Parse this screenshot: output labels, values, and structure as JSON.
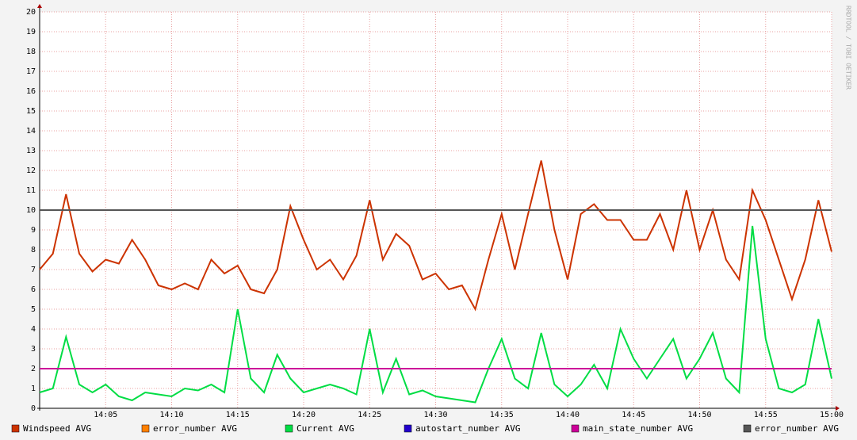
{
  "chart_data": {
    "type": "line",
    "watermark": "RRDTOOL / TOBI OETIKER",
    "x": [
      "14:00",
      "14:01",
      "14:02",
      "14:03",
      "14:04",
      "14:05",
      "14:06",
      "14:07",
      "14:08",
      "14:09",
      "14:10",
      "14:11",
      "14:12",
      "14:13",
      "14:14",
      "14:15",
      "14:16",
      "14:17",
      "14:18",
      "14:19",
      "14:20",
      "14:21",
      "14:22",
      "14:23",
      "14:24",
      "14:25",
      "14:26",
      "14:27",
      "14:28",
      "14:29",
      "14:30",
      "14:31",
      "14:32",
      "14:33",
      "14:34",
      "14:35",
      "14:36",
      "14:37",
      "14:38",
      "14:39",
      "14:40",
      "14:41",
      "14:42",
      "14:43",
      "14:44",
      "14:45",
      "14:46",
      "14:47",
      "14:48",
      "14:49",
      "14:50",
      "14:51",
      "14:52",
      "14:53",
      "14:54",
      "14:55",
      "14:56",
      "14:57",
      "14:58",
      "14:59",
      "15:00"
    ],
    "xlim": [
      "14:00",
      "15:00"
    ],
    "xticks": [
      "14:05",
      "14:10",
      "14:15",
      "14:20",
      "14:25",
      "14:30",
      "14:35",
      "14:40",
      "14:45",
      "14:50",
      "14:55",
      "15:00"
    ],
    "ylim": [
      0,
      20
    ],
    "yticks": [
      0,
      1,
      2,
      3,
      4,
      5,
      6,
      7,
      8,
      9,
      10,
      11,
      12,
      13,
      14,
      15,
      16,
      17,
      18,
      19,
      20
    ],
    "grid": true,
    "series": [
      {
        "name": "Windspeed AVG",
        "color": "#cc3300",
        "values": [
          7.0,
          7.8,
          10.8,
          7.8,
          6.9,
          7.5,
          7.3,
          8.5,
          7.5,
          6.2,
          6.0,
          6.3,
          6.0,
          7.5,
          6.8,
          7.2,
          6.0,
          5.8,
          7.0,
          10.2,
          8.5,
          7.0,
          7.5,
          6.5,
          7.7,
          10.5,
          7.5,
          8.8,
          8.2,
          6.5,
          6.8,
          6.0,
          6.2,
          5.0,
          7.5,
          9.8,
          7.0,
          9.8,
          12.5,
          9.0,
          6.5,
          9.8,
          10.3,
          9.5,
          9.5,
          8.5,
          8.5,
          9.8,
          8.0,
          11.0,
          8.0,
          10.0,
          7.5,
          6.5,
          11.0,
          9.5,
          7.5,
          5.5,
          7.5,
          10.5,
          7.9
        ]
      },
      {
        "name": "error_number AVG",
        "color": "#ff8000",
        "values": [
          null,
          null,
          null,
          null,
          null,
          null,
          null,
          null,
          null,
          null,
          null,
          null,
          null,
          null,
          null,
          null,
          null,
          null,
          null,
          null,
          null,
          null,
          null,
          null,
          null,
          null,
          null,
          null,
          null,
          null,
          null,
          null,
          null,
          null,
          null,
          null,
          null,
          null,
          null,
          null,
          null,
          null,
          null,
          null,
          null,
          null,
          null,
          null,
          null,
          null,
          null,
          null,
          null,
          null,
          null,
          null,
          null,
          null,
          null,
          null,
          null
        ]
      },
      {
        "name": "Current AVG",
        "color": "#00dd44",
        "values": [
          0.8,
          1.0,
          3.6,
          1.2,
          0.8,
          1.2,
          0.6,
          0.4,
          0.8,
          0.7,
          0.6,
          1.0,
          0.9,
          1.2,
          0.8,
          5.0,
          1.5,
          0.8,
          2.7,
          1.5,
          0.8,
          1.0,
          1.2,
          1.0,
          0.7,
          4.0,
          0.8,
          2.5,
          0.7,
          0.9,
          0.6,
          0.5,
          0.4,
          0.3,
          2.0,
          3.5,
          1.5,
          1.0,
          3.8,
          1.2,
          0.6,
          1.2,
          2.2,
          1.0,
          4.0,
          2.5,
          1.5,
          2.5,
          3.5,
          1.5,
          2.5,
          3.8,
          1.5,
          0.8,
          9.2,
          3.5,
          1.0,
          0.8,
          1.2,
          4.5,
          1.5
        ]
      },
      {
        "name": "autostart_number AVG",
        "color": "#2200cc",
        "values": [
          null,
          null,
          null,
          null,
          null,
          null,
          null,
          null,
          null,
          null,
          null,
          null,
          null,
          null,
          null,
          null,
          null,
          null,
          null,
          null,
          null,
          null,
          null,
          null,
          null,
          null,
          null,
          null,
          null,
          null,
          null,
          null,
          null,
          null,
          null,
          null,
          null,
          null,
          null,
          null,
          null,
          null,
          null,
          null,
          null,
          null,
          null,
          null,
          null,
          null,
          null,
          null,
          null,
          null,
          null,
          null,
          null,
          null,
          null,
          null,
          null
        ]
      },
      {
        "name": "main_state_number AVG",
        "color": "#cc0099",
        "values": [
          2,
          2,
          2,
          2,
          2,
          2,
          2,
          2,
          2,
          2,
          2,
          2,
          2,
          2,
          2,
          2,
          2,
          2,
          2,
          2,
          2,
          2,
          2,
          2,
          2,
          2,
          2,
          2,
          2,
          2,
          2,
          2,
          2,
          2,
          2,
          2,
          2,
          2,
          2,
          2,
          2,
          2,
          2,
          2,
          2,
          2,
          2,
          2,
          2,
          2,
          2,
          2,
          2,
          2,
          2,
          2,
          2,
          2,
          2,
          2,
          2
        ]
      },
      {
        "name": "error_number AVG",
        "color": "#555555",
        "values": [
          10,
          10,
          10,
          10,
          10,
          10,
          10,
          10,
          10,
          10,
          10,
          10,
          10,
          10,
          10,
          10,
          10,
          10,
          10,
          10,
          10,
          10,
          10,
          10,
          10,
          10,
          10,
          10,
          10,
          10,
          10,
          10,
          10,
          10,
          10,
          10,
          10,
          10,
          10,
          10,
          10,
          10,
          10,
          10,
          10,
          10,
          10,
          10,
          10,
          10,
          10,
          10,
          10,
          10,
          10,
          10,
          10,
          10,
          10,
          10,
          10
        ]
      }
    ]
  }
}
